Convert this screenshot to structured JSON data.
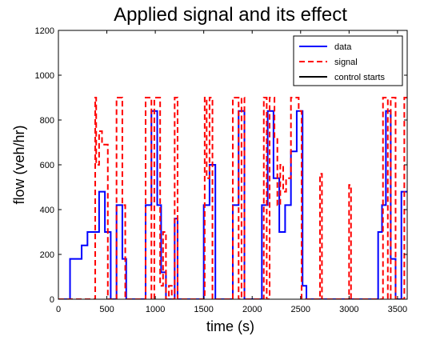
{
  "chart_data": {
    "type": "line",
    "title": "Applied signal and its effect",
    "xlabel": "time (s)",
    "ylabel": "flow (veh/hr)",
    "xlim": [
      0,
      3600
    ],
    "ylim": [
      0,
      1200
    ],
    "xticks": [
      "0",
      "500",
      "1000",
      "1500",
      "2000",
      "2500",
      "3000",
      "3500"
    ],
    "xtick_values": [
      0,
      500,
      1000,
      1500,
      2000,
      2500,
      3000,
      3500
    ],
    "yticks": [
      "0",
      "200",
      "400",
      "600",
      "800",
      "1000",
      "1200"
    ],
    "ytick_values": [
      0,
      200,
      400,
      600,
      800,
      1000,
      1200
    ],
    "grid": false,
    "legend_position": "top-right",
    "series": [
      {
        "name": "data",
        "color": "#0000ff",
        "style": "solid",
        "step": true,
        "points": [
          [
            0,
            0
          ],
          [
            120,
            0
          ],
          [
            120,
            180
          ],
          [
            240,
            180
          ],
          [
            240,
            240
          ],
          [
            300,
            240
          ],
          [
            300,
            300
          ],
          [
            420,
            300
          ],
          [
            420,
            480
          ],
          [
            480,
            480
          ],
          [
            480,
            300
          ],
          [
            540,
            300
          ],
          [
            540,
            0
          ],
          [
            600,
            0
          ],
          [
            600,
            420
          ],
          [
            660,
            420
          ],
          [
            660,
            180
          ],
          [
            700,
            180
          ],
          [
            700,
            0
          ],
          [
            900,
            0
          ],
          [
            900,
            420
          ],
          [
            960,
            420
          ],
          [
            960,
            840
          ],
          [
            1020,
            840
          ],
          [
            1020,
            420
          ],
          [
            1060,
            420
          ],
          [
            1060,
            120
          ],
          [
            1110,
            120
          ],
          [
            1110,
            0
          ],
          [
            1200,
            0
          ],
          [
            1200,
            360
          ],
          [
            1230,
            360
          ],
          [
            1230,
            0
          ],
          [
            1500,
            0
          ],
          [
            1500,
            420
          ],
          [
            1560,
            420
          ],
          [
            1560,
            600
          ],
          [
            1620,
            600
          ],
          [
            1620,
            0
          ],
          [
            1800,
            0
          ],
          [
            1800,
            420
          ],
          [
            1860,
            420
          ],
          [
            1860,
            840
          ],
          [
            1920,
            840
          ],
          [
            1920,
            0
          ],
          [
            2100,
            0
          ],
          [
            2100,
            420
          ],
          [
            2160,
            420
          ],
          [
            2160,
            840
          ],
          [
            2220,
            840
          ],
          [
            2220,
            540
          ],
          [
            2280,
            540
          ],
          [
            2280,
            300
          ],
          [
            2340,
            300
          ],
          [
            2340,
            420
          ],
          [
            2400,
            420
          ],
          [
            2400,
            660
          ],
          [
            2460,
            660
          ],
          [
            2460,
            840
          ],
          [
            2520,
            840
          ],
          [
            2520,
            60
          ],
          [
            2560,
            60
          ],
          [
            2560,
            0
          ],
          [
            3300,
            0
          ],
          [
            3300,
            300
          ],
          [
            3340,
            300
          ],
          [
            3340,
            420
          ],
          [
            3380,
            420
          ],
          [
            3380,
            840
          ],
          [
            3430,
            840
          ],
          [
            3430,
            180
          ],
          [
            3480,
            180
          ],
          [
            3480,
            0
          ],
          [
            3540,
            0
          ],
          [
            3540,
            480
          ],
          [
            3600,
            480
          ]
        ]
      },
      {
        "name": "signal",
        "color": "#ff0000",
        "style": "dashed",
        "step": true,
        "points": [
          [
            0,
            0
          ],
          [
            380,
            0
          ],
          [
            380,
            900
          ],
          [
            390,
            900
          ],
          [
            390,
            600
          ],
          [
            420,
            600
          ],
          [
            420,
            750
          ],
          [
            450,
            750
          ],
          [
            450,
            690
          ],
          [
            510,
            690
          ],
          [
            510,
            0
          ],
          [
            600,
            0
          ],
          [
            600,
            900
          ],
          [
            660,
            900
          ],
          [
            660,
            420
          ],
          [
            690,
            420
          ],
          [
            690,
            0
          ],
          [
            900,
            0
          ],
          [
            900,
            900
          ],
          [
            960,
            900
          ],
          [
            960,
            0
          ],
          [
            990,
            0
          ],
          [
            990,
            900
          ],
          [
            1050,
            900
          ],
          [
            1050,
            60
          ],
          [
            1080,
            60
          ],
          [
            1080,
            300
          ],
          [
            1110,
            300
          ],
          [
            1110,
            0
          ],
          [
            1140,
            0
          ],
          [
            1140,
            60
          ],
          [
            1170,
            60
          ],
          [
            1170,
            0
          ],
          [
            1200,
            0
          ],
          [
            1200,
            900
          ],
          [
            1230,
            900
          ],
          [
            1230,
            0
          ],
          [
            1510,
            0
          ],
          [
            1510,
            900
          ],
          [
            1530,
            900
          ],
          [
            1530,
            540
          ],
          [
            1560,
            540
          ],
          [
            1560,
            900
          ],
          [
            1590,
            900
          ],
          [
            1590,
            0
          ],
          [
            1800,
            0
          ],
          [
            1800,
            900
          ],
          [
            1860,
            900
          ],
          [
            1860,
            0
          ],
          [
            1890,
            0
          ],
          [
            1890,
            900
          ],
          [
            1920,
            900
          ],
          [
            1920,
            0
          ],
          [
            2120,
            0
          ],
          [
            2120,
            900
          ],
          [
            2150,
            900
          ],
          [
            2150,
            0
          ],
          [
            2180,
            0
          ],
          [
            2180,
            900
          ],
          [
            2230,
            900
          ],
          [
            2230,
            720
          ],
          [
            2260,
            720
          ],
          [
            2260,
            420
          ],
          [
            2290,
            420
          ],
          [
            2290,
            600
          ],
          [
            2320,
            600
          ],
          [
            2320,
            480
          ],
          [
            2350,
            480
          ],
          [
            2350,
            540
          ],
          [
            2400,
            540
          ],
          [
            2400,
            900
          ],
          [
            2480,
            900
          ],
          [
            2480,
            840
          ],
          [
            2510,
            840
          ],
          [
            2510,
            0
          ],
          [
            2700,
            0
          ],
          [
            2700,
            560
          ],
          [
            2720,
            560
          ],
          [
            2720,
            0
          ],
          [
            3000,
            0
          ],
          [
            3000,
            510
          ],
          [
            3020,
            510
          ],
          [
            3020,
            0
          ],
          [
            3350,
            0
          ],
          [
            3350,
            900
          ],
          [
            3400,
            900
          ],
          [
            3400,
            0
          ],
          [
            3430,
            0
          ],
          [
            3430,
            900
          ],
          [
            3480,
            900
          ],
          [
            3480,
            0
          ],
          [
            3570,
            0
          ],
          [
            3570,
            900
          ],
          [
            3600,
            900
          ]
        ]
      },
      {
        "name": "control starts",
        "color": "#000000",
        "style": "solid",
        "points": []
      }
    ]
  }
}
